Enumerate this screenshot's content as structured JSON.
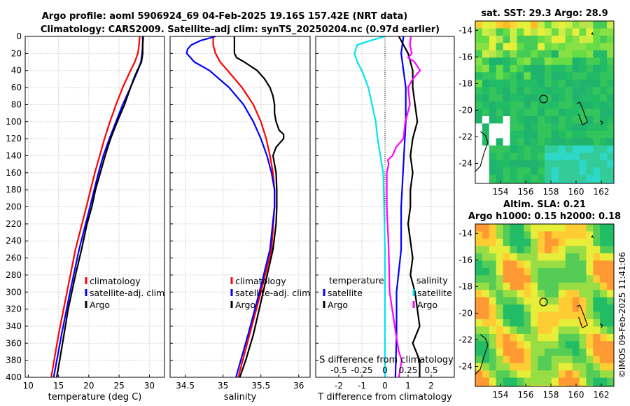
{
  "figure": {
    "title_line1": "Argo profile: aoml 5906924_69 04-Feb-2025 19.16S 157.42E (NRT data)",
    "title_line2": "Climatology: CARS2009. Satellite-adj clim: synTS_20250204.nc (0.97d earlier)",
    "watermark": "©IMOS 09-Feb-2025 11:41:06"
  },
  "colors": {
    "red": "#ff0000",
    "blue": "#0000ff",
    "black": "#000000",
    "cyan": "#00e5ee",
    "magenta": "#ff00ff"
  },
  "chart_data": [
    {
      "id": "temperature",
      "type": "line",
      "xlabel": "temperature (deg C)",
      "ylabel": "",
      "xlim": [
        9.5,
        32.5
      ],
      "ylim": [
        400,
        0
      ],
      "xticks": [
        10,
        15,
        20,
        25,
        30
      ],
      "yticks": [
        0,
        20,
        40,
        60,
        80,
        100,
        120,
        140,
        160,
        180,
        200,
        220,
        240,
        260,
        280,
        300,
        320,
        340,
        360,
        380,
        400
      ],
      "grid": true,
      "legend": {
        "position": "lower-right",
        "entries": [
          "climatology",
          "satellite-adj. clim",
          "Argo"
        ]
      },
      "series": [
        {
          "name": "climatology",
          "color": "#ff0000",
          "depth": [
            0,
            10,
            20,
            30,
            40,
            60,
            80,
            100,
            120,
            140,
            160,
            180,
            200,
            250,
            300,
            350,
            400
          ],
          "values": [
            28.4,
            28.3,
            28.1,
            27.6,
            26.9,
            25.6,
            24.5,
            23.5,
            22.6,
            21.8,
            21.0,
            20.3,
            19.6,
            17.8,
            16.4,
            15.0,
            13.8
          ]
        },
        {
          "name": "satellite-adj. clim",
          "color": "#0000ff",
          "depth": [
            0,
            10,
            20,
            30,
            40,
            60,
            80,
            100,
            120,
            140,
            160,
            180,
            200,
            250,
            300,
            350,
            400
          ],
          "values": [
            29.0,
            28.9,
            28.8,
            28.6,
            28.1,
            26.9,
            25.6,
            24.5,
            23.4,
            22.4,
            21.6,
            20.9,
            20.2,
            18.4,
            16.9,
            15.5,
            14.2
          ]
        },
        {
          "name": "Argo",
          "color": "#000000",
          "depth": [
            0,
            10,
            20,
            30,
            40,
            50,
            60,
            80,
            100,
            120,
            140,
            160,
            180,
            200,
            220,
            250,
            280,
            300,
            320,
            350,
            380,
            400
          ],
          "values": [
            28.9,
            28.9,
            28.9,
            28.7,
            28.0,
            27.4,
            26.9,
            25.9,
            24.7,
            23.6,
            22.7,
            21.9,
            21.1,
            20.5,
            19.7,
            18.8,
            17.8,
            17.2,
            16.6,
            15.9,
            15.2,
            14.7
          ]
        }
      ]
    },
    {
      "id": "salinity",
      "type": "line",
      "xlabel": "salinity",
      "xlim": [
        34.3,
        36.15
      ],
      "ylim": [
        400,
        0
      ],
      "xticks": [
        34.5,
        35,
        35.5,
        36
      ],
      "grid": true,
      "legend": {
        "position": "lower-right",
        "entries": [
          "climatology",
          "satellite-adj. clim",
          "Argo"
        ]
      },
      "series": [
        {
          "name": "climatology",
          "color": "#ff0000",
          "depth": [
            0,
            10,
            20,
            30,
            40,
            60,
            80,
            100,
            120,
            140,
            160,
            180,
            200,
            250,
            300,
            350,
            400
          ],
          "values": [
            34.87,
            34.87,
            34.9,
            34.96,
            35.06,
            35.25,
            35.4,
            35.5,
            35.57,
            35.62,
            35.66,
            35.68,
            35.68,
            35.64,
            35.5,
            35.35,
            35.2
          ]
        },
        {
          "name": "satellite-adj. clim",
          "color": "#0000ff",
          "depth": [
            0,
            5,
            10,
            15,
            20,
            30,
            40,
            60,
            80,
            100,
            120,
            140,
            160,
            180,
            200,
            250,
            300,
            350,
            400
          ],
          "values": [
            34.9,
            34.7,
            34.58,
            34.53,
            34.52,
            34.62,
            34.82,
            35.08,
            35.27,
            35.4,
            35.5,
            35.58,
            35.64,
            35.68,
            35.68,
            35.62,
            35.48,
            35.33,
            35.17
          ]
        },
        {
          "name": "Argo",
          "color": "#000000",
          "depth": [
            0,
            10,
            20,
            25,
            30,
            40,
            50,
            60,
            70,
            80,
            90,
            100,
            110,
            115,
            120,
            125,
            130,
            140,
            150,
            160,
            180,
            200,
            220,
            250,
            300,
            350,
            380,
            400
          ],
          "values": [
            35.15,
            35.15,
            35.15,
            35.18,
            35.28,
            35.45,
            35.55,
            35.62,
            35.66,
            35.68,
            35.68,
            35.7,
            35.74,
            35.8,
            35.8,
            35.75,
            35.7,
            35.66,
            35.68,
            35.7,
            35.71,
            35.71,
            35.7,
            35.66,
            35.53,
            35.4,
            35.3,
            35.22
          ]
        }
      ]
    },
    {
      "id": "differences",
      "type": "line",
      "xlabel": "T difference from climatology",
      "top_axis_label": "S difference from climatology",
      "xlim": [
        -3,
        3
      ],
      "s_xlim": [
        -0.75,
        0.75
      ],
      "ylim": [
        400,
        0
      ],
      "xticks": [
        -2,
        -1,
        0,
        1,
        2
      ],
      "top_xticks": [
        "-0.5",
        "-0.25",
        "0",
        "0.25",
        "0.5"
      ],
      "top_xtick_values": [
        -0.5,
        -0.25,
        0,
        0.25,
        0.5
      ],
      "grid": true,
      "legend_left": {
        "heading": "temperature",
        "entries": [
          "satellite",
          "Argo"
        ]
      },
      "legend_right": {
        "heading": "salinity",
        "entries": [
          "satellite",
          "Argo"
        ]
      },
      "series": [
        {
          "name": "temperature satellite",
          "axis": "T",
          "color": "#0000ff",
          "depth": [
            0,
            20,
            40,
            60,
            100,
            150,
            200,
            250,
            300,
            350,
            400
          ],
          "values": [
            0.8,
            0.7,
            0.8,
            0.9,
            0.9,
            0.8,
            0.7,
            0.7,
            0.5,
            0.5,
            0.45
          ]
        },
        {
          "name": "temperature Argo",
          "axis": "T",
          "color": "#000000",
          "depth": [
            0,
            20,
            40,
            60,
            80,
            100,
            120,
            140,
            160,
            180,
            200,
            220,
            240,
            260,
            280,
            300,
            320,
            340,
            360,
            380,
            400
          ],
          "values": [
            0.6,
            1.0,
            1.2,
            1.2,
            1.3,
            1.4,
            1.2,
            1.1,
            1.2,
            1.1,
            1.1,
            1.0,
            1.1,
            1.2,
            1.1,
            1.3,
            1.4,
            1.5,
            1.2,
            1.5,
            1.5
          ]
        },
        {
          "name": "salinity satellite",
          "axis": "S",
          "color": "#00e5ee",
          "depth": [
            0,
            5,
            10,
            20,
            30,
            40,
            60,
            80,
            100,
            120,
            140,
            160,
            200,
            250,
            300,
            400
          ],
          "values": [
            0.0,
            -0.16,
            -0.3,
            -0.33,
            -0.3,
            -0.25,
            -0.18,
            -0.14,
            -0.1,
            -0.08,
            -0.05,
            -0.02,
            -0.01,
            0.0,
            0.0,
            0.0
          ]
        },
        {
          "name": "salinity Argo",
          "axis": "S",
          "color": "#ff00ff",
          "depth": [
            0,
            10,
            20,
            25,
            30,
            40,
            50,
            60,
            80,
            100,
            120,
            130,
            140,
            145,
            150,
            160,
            180,
            200,
            250,
            300,
            350,
            370,
            380,
            400
          ],
          "values": [
            0.28,
            0.27,
            0.29,
            0.25,
            0.32,
            0.38,
            0.3,
            0.25,
            0.27,
            0.22,
            0.2,
            0.12,
            0.08,
            0.03,
            0.04,
            0.02,
            0.02,
            0.02,
            0.04,
            0.05,
            0.12,
            0.15,
            0.18,
            0.15
          ]
        }
      ]
    },
    {
      "id": "sst-map",
      "type": "heatmap",
      "title": "sat. SST: 29.3 Argo: 28.9",
      "xlim": [
        152,
        163
      ],
      "ylim": [
        -25.5,
        -13.3
      ],
      "xticks": [
        154,
        156,
        158,
        160,
        162
      ],
      "yticks": [
        -14,
        -16,
        -18,
        -20,
        -22,
        -24
      ]
    },
    {
      "id": "sla-map",
      "type": "heatmap",
      "title_line1": "Altim. SLA: 0.21",
      "title_line2": "Argo h1000: 0.15 h2000: 0.18",
      "xlim": [
        152,
        163
      ],
      "ylim": [
        -25.5,
        -13.3
      ],
      "xticks": [
        154,
        156,
        158,
        160,
        162
      ],
      "yticks": [
        -14,
        -16,
        -18,
        -20,
        -22,
        -24
      ]
    }
  ]
}
